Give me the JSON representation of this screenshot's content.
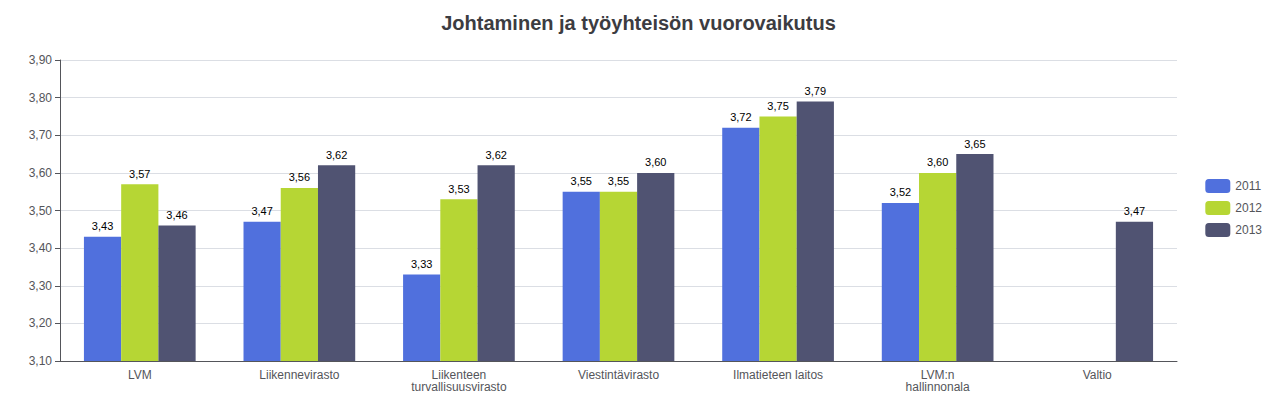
{
  "chart_data": {
    "type": "bar",
    "title": "Johtaminen ja työyhteisön vuorovaikutus",
    "categories": [
      "LVM",
      "Liikennevirasto",
      "Liikenteen\nturvallisuusvirasto",
      "Viestintävirasto",
      "Ilmatieteen laitos",
      "LVM:n\nhallinnonala",
      "Valtio"
    ],
    "series": [
      {
        "name": "2011",
        "values": [
          3.43,
          3.47,
          3.33,
          3.55,
          3.72,
          3.52,
          null
        ],
        "value_labels": [
          "3,43",
          "3,47",
          "3,33",
          "3,55",
          "3,72",
          "3,52",
          null
        ]
      },
      {
        "name": "2012",
        "values": [
          3.57,
          3.56,
          3.53,
          3.55,
          3.75,
          3.6,
          null
        ],
        "value_labels": [
          "3,57",
          "3,56",
          "3,53",
          "3,55",
          "3,75",
          "3,60",
          null
        ]
      },
      {
        "name": "2013",
        "values": [
          3.46,
          3.62,
          3.62,
          3.6,
          3.79,
          3.65,
          3.47
        ],
        "value_labels": [
          "3,46",
          "3,62",
          "3,62",
          "3,60",
          "3,79",
          "3,65",
          "3,47"
        ]
      }
    ],
    "ylim": [
      3.1,
      3.9
    ],
    "yticks": [
      {
        "value": 3.1,
        "label": "3,10"
      },
      {
        "value": 3.2,
        "label": "3,20"
      },
      {
        "value": 3.3,
        "label": "3,30"
      },
      {
        "value": 3.4,
        "label": "3,40"
      },
      {
        "value": 3.5,
        "label": "3,50"
      },
      {
        "value": 3.6,
        "label": "3,60"
      },
      {
        "value": 3.7,
        "label": "3,70"
      },
      {
        "value": 3.8,
        "label": "3,80"
      },
      {
        "value": 3.9,
        "label": "3,90"
      }
    ],
    "grid": true,
    "legend": "right",
    "data_labels": true
  }
}
